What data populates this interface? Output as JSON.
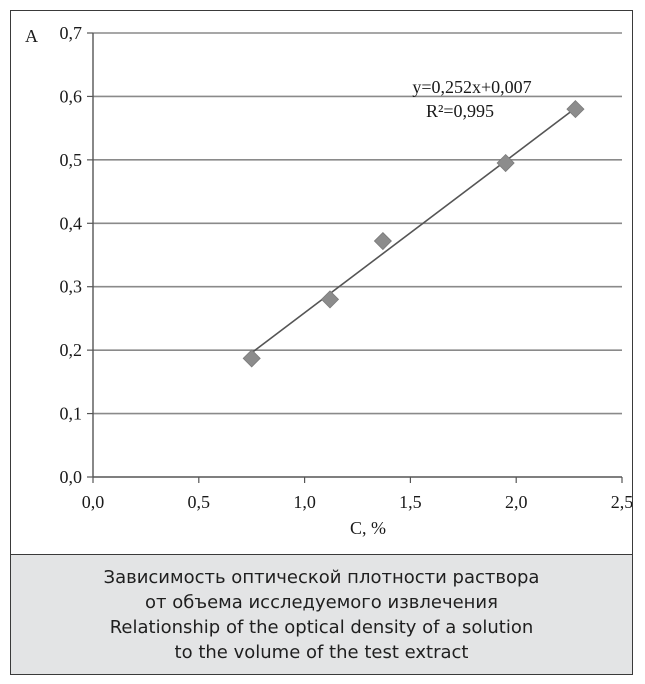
{
  "chart_data": {
    "type": "scatter",
    "ylabel": "A",
    "xlabel": "C, %",
    "xlim": [
      0.0,
      2.5
    ],
    "ylim": [
      0.0,
      0.7
    ],
    "x_ticks": [
      "0,0",
      "0,5",
      "1,0",
      "1,5",
      "2,0",
      "2,5"
    ],
    "y_ticks": [
      "0,0",
      "0,1",
      "0,2",
      "0,3",
      "0,4",
      "0,5",
      "0,6",
      "0,7"
    ],
    "grid": "horizontal",
    "points": [
      {
        "x": 0.75,
        "y": 0.187
      },
      {
        "x": 1.12,
        "y": 0.28
      },
      {
        "x": 1.37,
        "y": 0.372
      },
      {
        "x": 1.95,
        "y": 0.495
      },
      {
        "x": 2.28,
        "y": 0.58
      }
    ],
    "trendline": {
      "slope": 0.252,
      "intercept": 0.007,
      "x_range": [
        0.75,
        2.28
      ]
    },
    "equation": "y=0,252x+0,007",
    "r2_label": "R²=0,995",
    "marker_color": "#8c8c8c",
    "line_color": "#555555"
  },
  "caption": {
    "line1": "Зависимость оптической плотности раствора",
    "line2": "от объема исследуемого извлечения",
    "line3": "Relationship of the optical density of a solution",
    "line4": "to the volume of the test extract"
  }
}
